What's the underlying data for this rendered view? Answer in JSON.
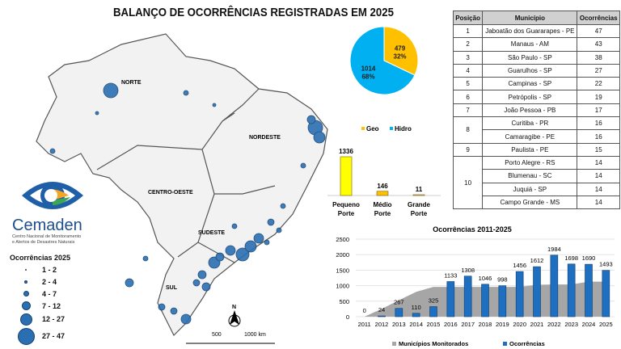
{
  "title": "BALANÇO DE OCORRÊNCIAS REGISTRADAS EM 2025",
  "map": {
    "regions": [
      "NORTE",
      "NORDESTE",
      "CENTRO-OESTE",
      "SUDESTE",
      "SUL"
    ],
    "north_label": "N",
    "scale": [
      "500",
      "1000 km"
    ],
    "bubble_color": "#2b6fb3"
  },
  "logo": {
    "name": "Cemaden",
    "subtitle1": "Centro Nacional de Monitoramento",
    "subtitle2": "e Alertos de Desastres Naturais"
  },
  "legend": {
    "title": "Ocorrências 2025",
    "classes": [
      "1 - 2",
      "2 - 4",
      "4 - 7",
      "7 - 12",
      "12 - 27",
      "27 - 47"
    ]
  },
  "table": {
    "headers": [
      "Posição",
      "Município",
      "Ocorrências"
    ],
    "rows": [
      {
        "pos": "1",
        "city": "Jaboatão dos Guararapes - PE",
        "n": "47"
      },
      {
        "pos": "2",
        "city": "Manaus - AM",
        "n": "43"
      },
      {
        "pos": "3",
        "city": "São Paulo - SP",
        "n": "38"
      },
      {
        "pos": "4",
        "city": "Guarulhos - SP",
        "n": "27"
      },
      {
        "pos": "5",
        "city": "Campinas - SP",
        "n": "22"
      },
      {
        "pos": "6",
        "city": "Petrópolis - SP",
        "n": "19"
      },
      {
        "pos": "7",
        "city": "João Pessoa - PB",
        "n": "17"
      },
      {
        "pos": "8",
        "city": "Curitiba - PR",
        "n": "16"
      },
      {
        "pos": "",
        "city": "Camaragibe - PE",
        "n": "16"
      },
      {
        "pos": "9",
        "city": "Paulista - PE",
        "n": "15"
      },
      {
        "pos": "10",
        "city": "Porto Alegre - RS",
        "n": "14"
      },
      {
        "pos": "",
        "city": "Blumenau - SC",
        "n": "14"
      },
      {
        "pos": "",
        "city": "Juquiá - SP",
        "n": "14"
      },
      {
        "pos": "",
        "city": "Campo Grande - MS",
        "n": "14"
      }
    ]
  },
  "chart_data": [
    {
      "type": "pie",
      "labels": [
        "Geo",
        "Hidro"
      ],
      "values": [
        479,
        1014
      ],
      "percent_labels": [
        "32%",
        "68%"
      ],
      "colors": [
        "#ffc000",
        "#00b0f0"
      ],
      "legend": "bottom"
    },
    {
      "type": "bar",
      "categories": [
        "Pequeno Porte",
        "Médio Porte",
        "Grande Porte"
      ],
      "category_lines": [
        [
          "Pequeno",
          "Porte"
        ],
        [
          "Médio",
          "Porte"
        ],
        [
          "Grande",
          "Porte"
        ]
      ],
      "values": [
        1336,
        146,
        11
      ],
      "colors": [
        "#ffff00",
        "#ffc000",
        "#d9d9d9"
      ]
    },
    {
      "type": "bar",
      "title": "Ocorrências 2011-2025",
      "categories": [
        "2011",
        "2012",
        "2013",
        "2014",
        "2015",
        "2016",
        "2017",
        "2018",
        "2019",
        "2020",
        "2021",
        "2022",
        "2023",
        "2024",
        "2025"
      ],
      "series": [
        {
          "name": "Municípios Monitorados",
          "type": "area",
          "color": "#a6a6a6",
          "values": [
            0,
            250,
            530,
            800,
            960,
            960,
            960,
            960,
            960,
            960,
            1030,
            1040,
            1040,
            1130,
            1130
          ]
        },
        {
          "name": "Ocorrências",
          "type": "bar",
          "color": "#1f6fc0",
          "values": [
            0,
            24,
            267,
            110,
            325,
            1133,
            1308,
            1046,
            998,
            1456,
            1612,
            1984,
            1698,
            1690,
            1493
          ]
        }
      ],
      "ylim": [
        0,
        2500
      ],
      "yticks": [
        "0",
        "500",
        "1000",
        "1500",
        "2000",
        "2500"
      ],
      "grid": true,
      "legend": "bottom"
    }
  ]
}
